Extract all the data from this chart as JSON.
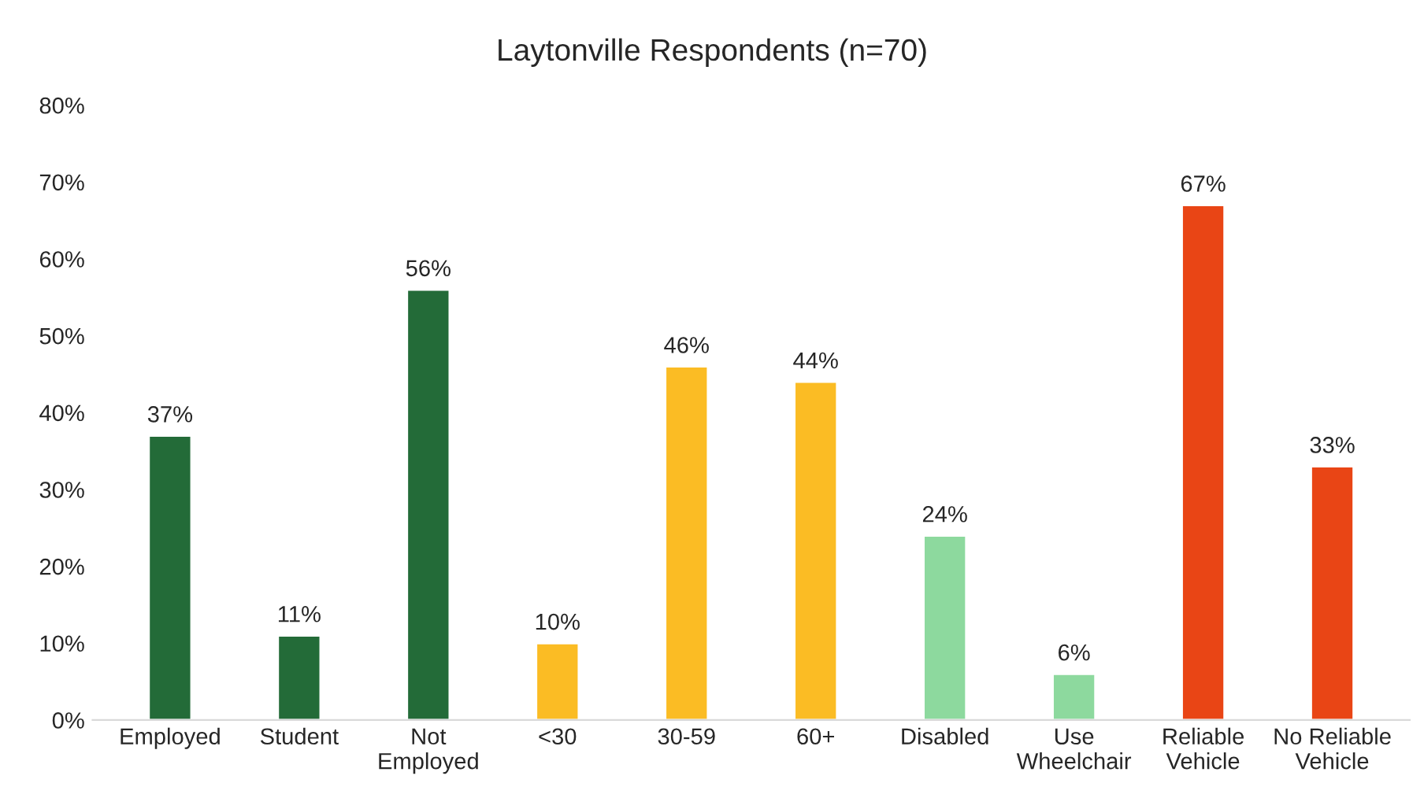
{
  "chart_data": {
    "type": "bar",
    "title": "Laytonville Respondents (n=70)",
    "categories": [
      "Employed",
      "Student",
      "Not Employed",
      "<30",
      "30-59",
      "60+",
      "Disabled",
      "Use Wheelchair",
      "Reliable Vehicle",
      "No Reliable Vehicle"
    ],
    "values": [
      37,
      11,
      56,
      10,
      46,
      44,
      24,
      6,
      67,
      33
    ],
    "colors": [
      "#236b38",
      "#236b38",
      "#236b38",
      "#fbbc24",
      "#fbbc24",
      "#fbbc24",
      "#8dd99e",
      "#8dd99e",
      "#e94515",
      "#e94515"
    ],
    "value_labels": [
      "37%",
      "11%",
      "56%",
      "10%",
      "46%",
      "44%",
      "24%",
      "6%",
      "67%",
      "33%"
    ],
    "ylim": [
      0,
      80
    ],
    "yticks": [
      {
        "value": 0,
        "label": "0%"
      },
      {
        "value": 10,
        "label": "10%"
      },
      {
        "value": 20,
        "label": "20%"
      },
      {
        "value": 30,
        "label": "30%"
      },
      {
        "value": 40,
        "label": "40%"
      },
      {
        "value": 50,
        "label": "50%"
      },
      {
        "value": 60,
        "label": "60%"
      },
      {
        "value": 70,
        "label": "70%"
      },
      {
        "value": 80,
        "label": "80%"
      }
    ],
    "grid": false,
    "legend": false
  }
}
